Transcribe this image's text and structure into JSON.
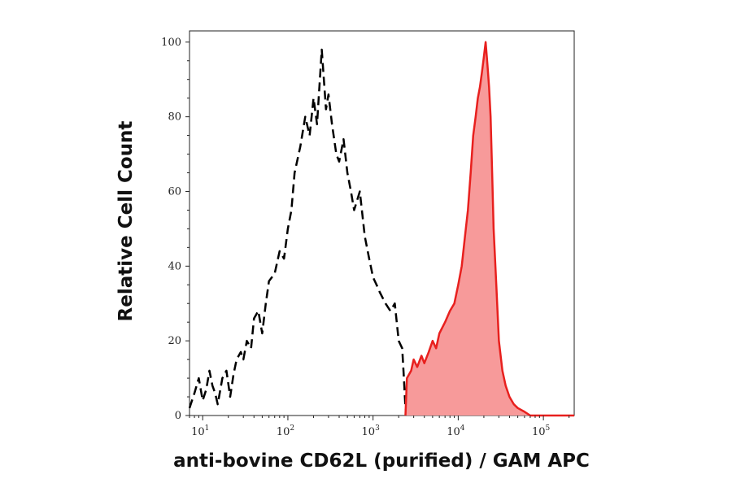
{
  "chart_data": {
    "type": "area",
    "title": "",
    "xlabel": "anti-bovine CD62L (purified) / GAM APC",
    "ylabel": "Relative Cell Count",
    "x_scale": "log",
    "xlim": [
      7,
      230000
    ],
    "ylim": [
      0,
      103
    ],
    "x_ticks": [
      {
        "value": 10,
        "base": "10",
        "exp": "1"
      },
      {
        "value": 100,
        "base": "10",
        "exp": "2"
      },
      {
        "value": 1000,
        "base": "10",
        "exp": "3"
      },
      {
        "value": 10000,
        "base": "10",
        "exp": "4"
      },
      {
        "value": 100000,
        "base": "10",
        "exp": "5"
      }
    ],
    "y_ticks": [
      0,
      20,
      40,
      60,
      80,
      100
    ],
    "grid": false,
    "legend": "none",
    "colors": {
      "stained": "#e8201e",
      "stained_fill": "#f79a9a",
      "control": "#000000"
    },
    "series": [
      {
        "style": "dashed-black-outline",
        "x": [
          7,
          8,
          9,
          10,
          11,
          12,
          13,
          14,
          15,
          17,
          19,
          21,
          23,
          25,
          28,
          30,
          33,
          37,
          40,
          45,
          50,
          55,
          60,
          70,
          80,
          90,
          100,
          110,
          120,
          140,
          160,
          180,
          200,
          220,
          250,
          280,
          300,
          330,
          370,
          400,
          450,
          500,
          550,
          600,
          700,
          800,
          900,
          1000,
          1100,
          1200,
          1400,
          1600,
          1800,
          2000,
          2200,
          2300,
          2400,
          2500
        ],
        "y": [
          2,
          6,
          10,
          4,
          7,
          12,
          8,
          6,
          3,
          10,
          12,
          5,
          11,
          15,
          17,
          15,
          20,
          18,
          26,
          28,
          22,
          30,
          36,
          38,
          44,
          42,
          50,
          55,
          65,
          72,
          80,
          75,
          85,
          78,
          98,
          82,
          86,
          78,
          70,
          68,
          74,
          65,
          60,
          55,
          60,
          48,
          42,
          37,
          35,
          33,
          30,
          28,
          30,
          20,
          18,
          10,
          2,
          0
        ]
      },
      {
        "style": "filled-red",
        "x": [
          2400,
          2500,
          2800,
          3000,
          3300,
          3700,
          4000,
          4500,
          5000,
          5500,
          6000,
          7000,
          8000,
          9000,
          10000,
          11000,
          12000,
          13000,
          14000,
          15000,
          16000,
          17000,
          18000,
          19000,
          20000,
          21000,
          22000,
          23000,
          24000,
          25000,
          26000,
          28000,
          30000,
          33000,
          36000,
          40000,
          45000,
          50000,
          60000,
          70000,
          100000,
          230000
        ],
        "y": [
          0,
          10,
          12,
          15,
          13,
          16,
          14,
          17,
          20,
          18,
          22,
          25,
          28,
          30,
          35,
          40,
          48,
          55,
          65,
          75,
          80,
          85,
          88,
          92,
          96,
          100,
          94,
          88,
          80,
          65,
          50,
          35,
          20,
          12,
          8,
          5,
          3,
          2,
          1,
          0,
          0,
          0
        ]
      }
    ]
  }
}
